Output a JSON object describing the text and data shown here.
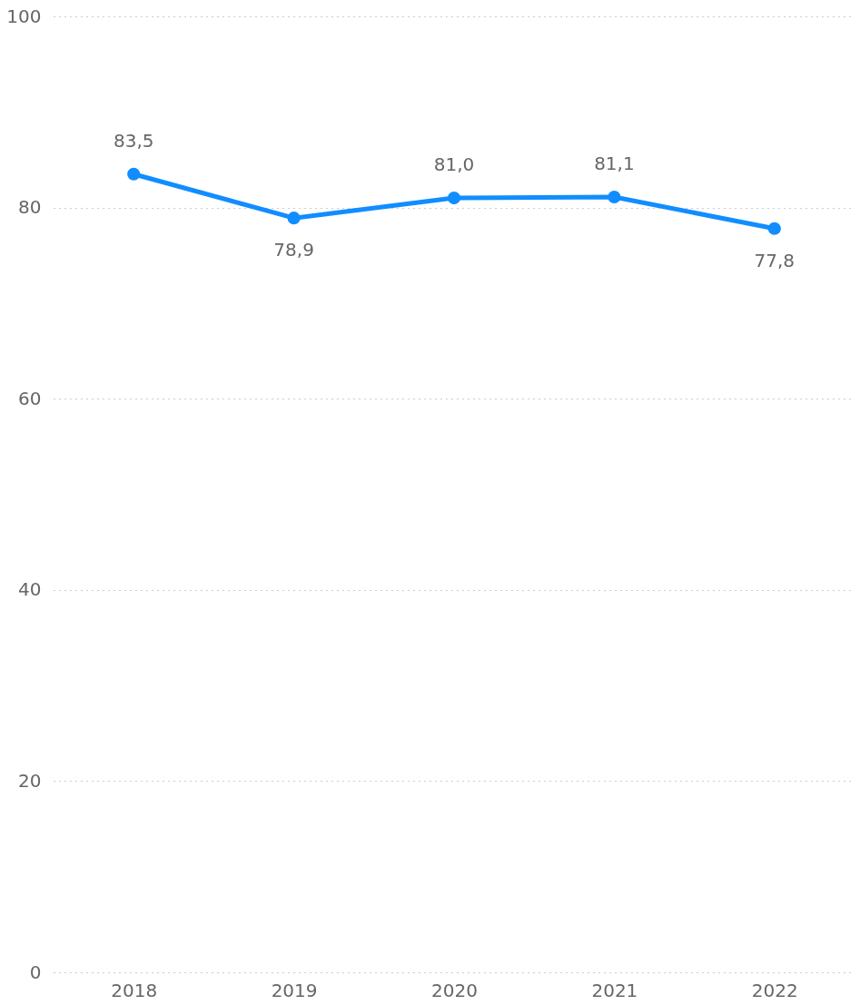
{
  "chart_data": {
    "type": "line",
    "categories": [
      "2018",
      "2019",
      "2020",
      "2021",
      "2022"
    ],
    "series": [
      {
        "color": "#118dff",
        "values": [
          83.5,
          78.9,
          81.0,
          81.1,
          77.8
        ],
        "value_labels": [
          "83,5",
          "78,9",
          "81,0",
          "81,1",
          "77,8"
        ]
      }
    ],
    "ylim": [
      0,
      100
    ],
    "yticks": [
      0,
      20,
      40,
      60,
      80,
      100
    ],
    "grid": "y",
    "marker": "circle"
  }
}
